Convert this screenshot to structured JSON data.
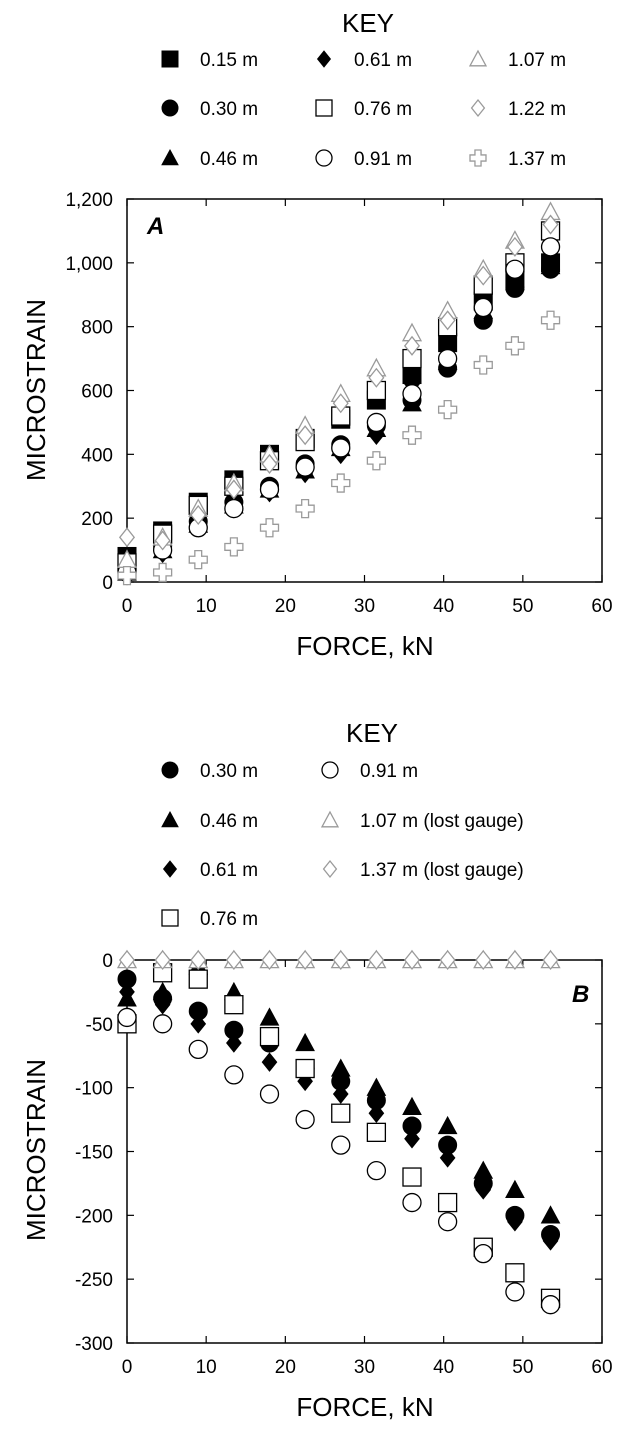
{
  "chart_data": [
    {
      "type": "scatter",
      "panel_label": "A",
      "key_title": "KEY",
      "xlabel": "FORCE, kN",
      "ylabel": "MICROSTRAIN",
      "xlim": [
        0,
        60
      ],
      "ylim": [
        0,
        1200
      ],
      "x_ticks": [
        0,
        10,
        20,
        30,
        40,
        50,
        60
      ],
      "y_ticks": [
        0,
        200,
        400,
        600,
        800,
        1000,
        1200
      ],
      "x_tick_labels": [
        "0",
        "10",
        "20",
        "30",
        "40",
        "50",
        "60"
      ],
      "y_tick_labels": [
        "0",
        "200",
        "400",
        "600",
        "800",
        "1,000",
        "1,200"
      ],
      "grid": false,
      "legend_placement": "top",
      "x": [
        0,
        4.5,
        9,
        13.5,
        18,
        22.5,
        27,
        31.5,
        36,
        40.5,
        45,
        49,
        53.5
      ],
      "series": [
        {
          "name": "0.15 m",
          "marker": "square-filled",
          "values": [
            80,
            160,
            250,
            320,
            400,
            450,
            510,
            570,
            650,
            750,
            880,
            950,
            1000
          ]
        },
        {
          "name": "0.30 m",
          "marker": "circle-filled",
          "values": [
            40,
            110,
            190,
            250,
            300,
            370,
            430,
            490,
            570,
            670,
            820,
            920,
            980
          ]
        },
        {
          "name": "0.46 m",
          "marker": "triangle-filled",
          "values": [
            30,
            100,
            180,
            240,
            290,
            350,
            420,
            480,
            560,
            690,
            850,
            940,
            990
          ]
        },
        {
          "name": "0.61 m",
          "marker": "diamond-filled",
          "values": [
            20,
            90,
            170,
            230,
            280,
            340,
            400,
            460,
            620,
            740,
            900,
            980,
            1050
          ]
        },
        {
          "name": "0.76 m",
          "marker": "square-open",
          "values": [
            60,
            150,
            240,
            300,
            380,
            440,
            520,
            600,
            700,
            800,
            930,
            1000,
            1100
          ]
        },
        {
          "name": "0.91 m",
          "marker": "circle-open",
          "values": [
            30,
            100,
            170,
            230,
            290,
            360,
            420,
            500,
            590,
            700,
            860,
            980,
            1050
          ]
        },
        {
          "name": "1.07 m",
          "marker": "triangle-open",
          "values": [
            70,
            140,
            230,
            310,
            400,
            490,
            590,
            670,
            780,
            850,
            980,
            1070,
            1160
          ]
        },
        {
          "name": "1.22 m",
          "marker": "diamond-open",
          "values": [
            140,
            130,
            210,
            290,
            370,
            460,
            560,
            640,
            740,
            820,
            960,
            1050,
            1120
          ]
        },
        {
          "name": "1.37 m",
          "marker": "cross-open",
          "values": [
            20,
            30,
            70,
            110,
            170,
            230,
            310,
            380,
            460,
            540,
            680,
            740,
            820
          ]
        }
      ]
    },
    {
      "type": "scatter",
      "panel_label": "B",
      "key_title": "KEY",
      "xlabel": "FORCE, kN",
      "ylabel": "MICROSTRAIN",
      "xlim": [
        0,
        60
      ],
      "ylim": [
        -300,
        0
      ],
      "x_ticks": [
        0,
        10,
        20,
        30,
        40,
        50,
        60
      ],
      "y_ticks": [
        0,
        -50,
        -100,
        -150,
        -200,
        -250,
        -300
      ],
      "x_tick_labels": [
        "0",
        "10",
        "20",
        "30",
        "40",
        "50",
        "60"
      ],
      "y_tick_labels": [
        "0",
        "-50",
        "-100",
        "-150",
        "-200",
        "-250",
        "-300"
      ],
      "grid": false,
      "legend_placement": "top",
      "x": [
        0,
        4.5,
        9,
        13.5,
        18,
        22.5,
        27,
        31.5,
        36,
        40.5,
        45,
        49,
        53.5
      ],
      "series": [
        {
          "name": "0.30 m",
          "marker": "circle-filled",
          "values": [
            -15,
            -30,
            -40,
            -55,
            -65,
            -85,
            -95,
            -110,
            -130,
            -145,
            -175,
            -200,
            -215
          ]
        },
        {
          "name": "0.46 m",
          "marker": "triangle-filled",
          "values": [
            -30,
            -25,
            -5,
            -25,
            -45,
            -65,
            -85,
            -100,
            -115,
            -130,
            -165,
            -180,
            -200
          ]
        },
        {
          "name": "0.61 m",
          "marker": "diamond-filled",
          "values": [
            -25,
            -35,
            -50,
            -65,
            -80,
            -95,
            -105,
            -120,
            -140,
            -155,
            -180,
            -205,
            -220
          ]
        },
        {
          "name": "0.76 m",
          "marker": "square-open",
          "values": [
            -50,
            -10,
            -15,
            -35,
            -60,
            -85,
            -120,
            -135,
            -170,
            -190,
            -225,
            -245,
            -265
          ]
        },
        {
          "name": "0.91 m",
          "marker": "circle-open",
          "values": [
            -45,
            -50,
            -70,
            -90,
            -105,
            -125,
            -145,
            -165,
            -190,
            -205,
            -230,
            -260,
            -270
          ]
        },
        {
          "name": "1.07 m (lost gauge)",
          "marker": "triangle-open",
          "values": [
            0,
            0,
            0,
            0,
            0,
            0,
            0,
            0,
            0,
            0,
            0,
            0,
            0
          ]
        },
        {
          "name": "1.37 m (lost gauge)",
          "marker": "diamond-open",
          "values": [
            0,
            0,
            0,
            0,
            0,
            0,
            0,
            0,
            0,
            0,
            0,
            0,
            0
          ]
        }
      ]
    }
  ]
}
